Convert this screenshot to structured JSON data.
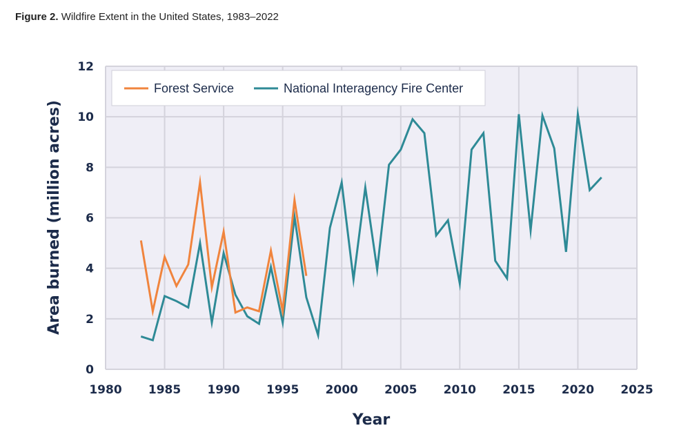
{
  "figure": {
    "label": "Figure 2.",
    "title": "Wildfire Extent in the United States, 1983–2022"
  },
  "chart_data": {
    "type": "line",
    "xlabel": "Year",
    "ylabel": "Area burned (million acres)",
    "xlim": [
      1980,
      2025
    ],
    "ylim": [
      0,
      12
    ],
    "xticks": [
      1980,
      1985,
      1990,
      1995,
      2000,
      2005,
      2010,
      2015,
      2020,
      2025
    ],
    "yticks": [
      0,
      2,
      4,
      6,
      8,
      10,
      12
    ],
    "grid": true,
    "legend_position": "top-left",
    "series": [
      {
        "name": "Forest Service",
        "color": "#f0843d",
        "x": [
          1983,
          1984,
          1985,
          1986,
          1987,
          1988,
          1989,
          1990,
          1991,
          1992,
          1993,
          1994,
          1995,
          1996,
          1997
        ],
        "values": [
          5.1,
          2.3,
          4.45,
          3.3,
          4.15,
          7.4,
          3.25,
          5.45,
          2.25,
          2.45,
          2.3,
          4.7,
          2.3,
          6.7,
          3.7
        ]
      },
      {
        "name": "National Interagency Fire Center",
        "color": "#2e8a96",
        "x": [
          1983,
          1984,
          1985,
          1986,
          1987,
          1988,
          1989,
          1990,
          1991,
          1992,
          1993,
          1994,
          1995,
          1996,
          1997,
          1998,
          1999,
          2000,
          2001,
          2002,
          2003,
          2004,
          2005,
          2006,
          2007,
          2008,
          2009,
          2010,
          2011,
          2012,
          2013,
          2014,
          2015,
          2016,
          2017,
          2018,
          2019,
          2020,
          2021,
          2022
        ],
        "values": [
          1.3,
          1.15,
          2.9,
          2.7,
          2.45,
          5.0,
          1.85,
          4.6,
          2.95,
          2.1,
          1.8,
          4.05,
          1.85,
          6.05,
          2.85,
          1.35,
          5.6,
          7.4,
          3.55,
          7.2,
          3.95,
          8.1,
          8.7,
          9.9,
          9.35,
          5.3,
          5.9,
          3.4,
          8.7,
          9.35,
          4.3,
          3.6,
          10.1,
          5.5,
          10.05,
          8.75,
          4.65,
          10.1,
          7.1,
          7.6
        ]
      }
    ]
  }
}
